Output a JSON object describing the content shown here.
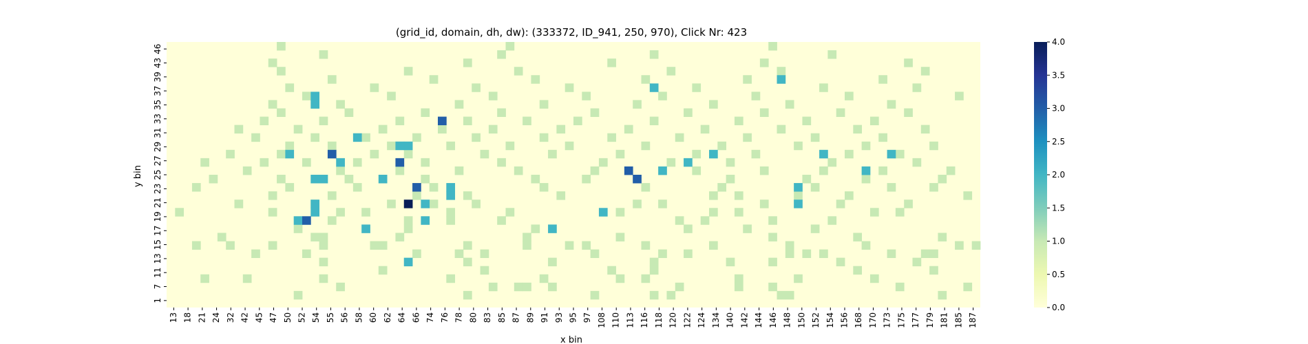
{
  "chart_data": {
    "type": "heatmap",
    "title": "(grid_id, domain, dh, dw): (333372, ID_941, 250, 970), Click Nr: 423",
    "xlabel": "x bin",
    "ylabel": "y bin",
    "colormap": "YlGnBu",
    "colorbar": {
      "vmin": 0.0,
      "vmax": 4.0,
      "ticks": [
        "0.0",
        "0.5",
        "1.0",
        "1.5",
        "2.0",
        "2.5",
        "3.0",
        "3.5",
        "4.0"
      ]
    },
    "colors": {
      "c0": "#ffffd9",
      "c1": "#c7e9b4",
      "c2": "#41b6c4",
      "c3": "#225ea8",
      "c4": "#081d58"
    },
    "x_tick_labels": [
      "13",
      "18",
      "21",
      "24",
      "32",
      "42",
      "45",
      "47",
      "50",
      "52",
      "54",
      "55",
      "56",
      "58",
      "60",
      "62",
      "64",
      "66",
      "74",
      "76",
      "78",
      "80",
      "83",
      "85",
      "87",
      "89",
      "91",
      "93",
      "95",
      "97",
      "108",
      "110",
      "113",
      "116",
      "118",
      "120",
      "122",
      "124",
      "134",
      "140",
      "142",
      "144",
      "146",
      "148",
      "150",
      "152",
      "154",
      "156",
      "168",
      "170",
      "173",
      "175",
      "177",
      "179",
      "181",
      "185",
      "187"
    ],
    "y_tick_labels": [
      "1",
      "7",
      "11",
      "13",
      "15",
      "17",
      "19",
      "21",
      "23",
      "25",
      "27",
      "29",
      "31",
      "33",
      "35",
      "37",
      "39",
      "43",
      "46"
    ],
    "n_cols": 96,
    "n_rows": 32,
    "cells": [
      [
        1,
        15,
        1
      ],
      [
        1,
        35,
        1
      ],
      [
        1,
        50,
        1
      ],
      [
        1,
        57,
        1
      ],
      [
        1,
        59,
        1
      ],
      [
        1,
        72,
        1
      ],
      [
        1,
        73,
        1
      ],
      [
        1,
        91,
        1
      ],
      [
        2,
        20,
        1
      ],
      [
        2,
        38,
        1
      ],
      [
        2,
        41,
        1
      ],
      [
        2,
        42,
        1
      ],
      [
        2,
        45,
        1
      ],
      [
        2,
        60,
        1
      ],
      [
        2,
        67,
        1
      ],
      [
        2,
        71,
        1
      ],
      [
        2,
        86,
        1
      ],
      [
        2,
        94,
        1
      ],
      [
        3,
        4,
        1
      ],
      [
        3,
        9,
        1
      ],
      [
        3,
        18,
        1
      ],
      [
        3,
        33,
        1
      ],
      [
        3,
        44,
        1
      ],
      [
        3,
        53,
        1
      ],
      [
        3,
        56,
        1
      ],
      [
        3,
        67,
        1
      ],
      [
        3,
        74,
        1
      ],
      [
        3,
        83,
        1
      ],
      [
        4,
        25,
        1
      ],
      [
        4,
        37,
        1
      ],
      [
        4,
        52,
        1
      ],
      [
        4,
        57,
        1
      ],
      [
        4,
        81,
        1
      ],
      [
        4,
        90,
        1
      ],
      [
        5,
        18,
        1
      ],
      [
        5,
        35,
        1
      ],
      [
        5,
        45,
        1
      ],
      [
        5,
        57,
        1
      ],
      [
        5,
        66,
        1
      ],
      [
        5,
        71,
        1
      ],
      [
        5,
        79,
        1
      ],
      [
        5,
        88,
        1
      ],
      [
        6,
        10,
        1
      ],
      [
        6,
        16,
        1
      ],
      [
        6,
        29,
        1
      ],
      [
        6,
        34,
        1
      ],
      [
        6,
        37,
        1
      ],
      [
        6,
        50,
        1
      ],
      [
        6,
        58,
        1
      ],
      [
        6,
        61,
        1
      ],
      [
        6,
        73,
        1
      ],
      [
        6,
        75,
        1
      ],
      [
        6,
        77,
        1
      ],
      [
        6,
        85,
        1
      ],
      [
        6,
        89,
        1
      ],
      [
        6,
        90,
        1
      ],
      [
        7,
        3,
        1
      ],
      [
        7,
        7,
        1
      ],
      [
        7,
        12,
        1
      ],
      [
        7,
        18,
        1
      ],
      [
        7,
        24,
        1
      ],
      [
        7,
        25,
        1
      ],
      [
        7,
        35,
        1
      ],
      [
        7,
        42,
        1
      ],
      [
        7,
        47,
        1
      ],
      [
        7,
        49,
        1
      ],
      [
        7,
        56,
        1
      ],
      [
        7,
        64,
        1
      ],
      [
        7,
        73,
        1
      ],
      [
        7,
        82,
        1
      ],
      [
        7,
        93,
        1
      ],
      [
        7,
        95,
        1
      ],
      [
        8,
        6,
        1
      ],
      [
        8,
        17,
        1
      ],
      [
        8,
        18,
        1
      ],
      [
        8,
        27,
        1
      ],
      [
        8,
        42,
        1
      ],
      [
        8,
        53,
        1
      ],
      [
        8,
        71,
        1
      ],
      [
        8,
        81,
        1
      ],
      [
        8,
        91,
        1
      ],
      [
        9,
        15,
        1
      ],
      [
        9,
        28,
        1
      ],
      [
        9,
        43,
        1
      ],
      [
        9,
        61,
        1
      ],
      [
        9,
        68,
        1
      ],
      [
        9,
        76,
        1
      ],
      [
        10,
        19,
        1
      ],
      [
        10,
        28,
        1
      ],
      [
        10,
        33,
        1
      ],
      [
        10,
        39,
        1
      ],
      [
        10,
        60,
        1
      ],
      [
        10,
        63,
        1
      ],
      [
        10,
        71,
        1
      ],
      [
        10,
        78,
        1
      ],
      [
        11,
        1,
        1
      ],
      [
        11,
        12,
        1
      ],
      [
        11,
        20,
        1
      ],
      [
        11,
        23,
        1
      ],
      [
        11,
        33,
        1
      ],
      [
        11,
        40,
        1
      ],
      [
        11,
        53,
        1
      ],
      [
        11,
        64,
        1
      ],
      [
        11,
        67,
        1
      ],
      [
        11,
        83,
        1
      ],
      [
        11,
        86,
        1
      ],
      [
        12,
        8,
        1
      ],
      [
        12,
        17,
        1
      ],
      [
        12,
        26,
        1
      ],
      [
        12,
        31,
        1
      ],
      [
        12,
        36,
        1
      ],
      [
        12,
        55,
        1
      ],
      [
        12,
        58,
        1
      ],
      [
        12,
        70,
        1
      ],
      [
        12,
        79,
        1
      ],
      [
        12,
        87,
        1
      ],
      [
        13,
        12,
        1
      ],
      [
        13,
        19,
        1
      ],
      [
        13,
        29,
        1
      ],
      [
        13,
        35,
        1
      ],
      [
        13,
        46,
        1
      ],
      [
        13,
        64,
        1
      ],
      [
        13,
        67,
        1
      ],
      [
        13,
        74,
        1
      ],
      [
        13,
        80,
        1
      ],
      [
        13,
        94,
        1
      ],
      [
        14,
        3,
        1
      ],
      [
        14,
        14,
        1
      ],
      [
        14,
        22,
        1
      ],
      [
        14,
        31,
        1
      ],
      [
        14,
        44,
        1
      ],
      [
        14,
        56,
        1
      ],
      [
        14,
        65,
        1
      ],
      [
        14,
        76,
        1
      ],
      [
        14,
        85,
        1
      ],
      [
        14,
        90,
        1
      ],
      [
        15,
        5,
        1
      ],
      [
        15,
        13,
        1
      ],
      [
        15,
        21,
        1
      ],
      [
        15,
        30,
        1
      ],
      [
        15,
        43,
        1
      ],
      [
        15,
        49,
        1
      ],
      [
        15,
        66,
        1
      ],
      [
        15,
        75,
        1
      ],
      [
        15,
        82,
        1
      ],
      [
        15,
        91,
        1
      ],
      [
        16,
        9,
        1
      ],
      [
        16,
        20,
        1
      ],
      [
        16,
        27,
        1
      ],
      [
        16,
        34,
        1
      ],
      [
        16,
        41,
        1
      ],
      [
        16,
        50,
        1
      ],
      [
        16,
        62,
        1
      ],
      [
        16,
        70,
        1
      ],
      [
        16,
        77,
        1
      ],
      [
        16,
        84,
        1
      ],
      [
        16,
        92,
        1
      ],
      [
        17,
        4,
        1
      ],
      [
        17,
        11,
        1
      ],
      [
        17,
        16,
        1
      ],
      [
        17,
        22,
        1
      ],
      [
        17,
        30,
        1
      ],
      [
        17,
        39,
        1
      ],
      [
        17,
        51,
        1
      ],
      [
        17,
        59,
        1
      ],
      [
        17,
        66,
        1
      ],
      [
        17,
        78,
        1
      ],
      [
        17,
        88,
        1
      ],
      [
        18,
        7,
        1
      ],
      [
        18,
        13,
        1
      ],
      [
        18,
        24,
        1
      ],
      [
        18,
        28,
        1
      ],
      [
        18,
        37,
        1
      ],
      [
        18,
        45,
        1
      ],
      [
        18,
        53,
        1
      ],
      [
        18,
        62,
        1
      ],
      [
        18,
        69,
        1
      ],
      [
        18,
        80,
        1
      ],
      [
        18,
        86,
        1
      ],
      [
        19,
        14,
        1
      ],
      [
        19,
        19,
        1
      ],
      [
        19,
        26,
        1
      ],
      [
        19,
        33,
        1
      ],
      [
        19,
        40,
        1
      ],
      [
        19,
        47,
        1
      ],
      [
        19,
        56,
        1
      ],
      [
        19,
        65,
        1
      ],
      [
        19,
        74,
        1
      ],
      [
        19,
        82,
        1
      ],
      [
        19,
        90,
        1
      ],
      [
        20,
        10,
        1
      ],
      [
        20,
        17,
        1
      ],
      [
        20,
        23,
        1
      ],
      [
        20,
        29,
        1
      ],
      [
        20,
        36,
        1
      ],
      [
        20,
        44,
        1
      ],
      [
        20,
        52,
        1
      ],
      [
        20,
        60,
        1
      ],
      [
        20,
        68,
        1
      ],
      [
        20,
        76,
        1
      ],
      [
        20,
        84,
        1
      ],
      [
        21,
        8,
        1
      ],
      [
        21,
        15,
        1
      ],
      [
        21,
        25,
        1
      ],
      [
        21,
        32,
        1
      ],
      [
        21,
        38,
        1
      ],
      [
        21,
        46,
        1
      ],
      [
        21,
        54,
        1
      ],
      [
        21,
        63,
        1
      ],
      [
        21,
        72,
        1
      ],
      [
        21,
        81,
        1
      ],
      [
        21,
        89,
        1
      ],
      [
        22,
        11,
        1
      ],
      [
        22,
        18,
        1
      ],
      [
        22,
        27,
        1
      ],
      [
        22,
        35,
        1
      ],
      [
        22,
        42,
        1
      ],
      [
        22,
        48,
        1
      ],
      [
        22,
        57,
        1
      ],
      [
        22,
        67,
        1
      ],
      [
        22,
        75,
        1
      ],
      [
        22,
        83,
        1
      ],
      [
        23,
        13,
        1
      ],
      [
        23,
        21,
        1
      ],
      [
        23,
        30,
        1
      ],
      [
        23,
        39,
        1
      ],
      [
        23,
        50,
        1
      ],
      [
        23,
        61,
        1
      ],
      [
        23,
        70,
        1
      ],
      [
        23,
        79,
        1
      ],
      [
        23,
        87,
        1
      ],
      [
        24,
        12,
        1
      ],
      [
        24,
        20,
        1
      ],
      [
        24,
        34,
        1
      ],
      [
        24,
        44,
        1
      ],
      [
        24,
        55,
        1
      ],
      [
        24,
        64,
        1
      ],
      [
        24,
        73,
        1
      ],
      [
        24,
        85,
        1
      ],
      [
        25,
        16,
        1
      ],
      [
        25,
        26,
        1
      ],
      [
        25,
        38,
        1
      ],
      [
        25,
        49,
        1
      ],
      [
        25,
        58,
        1
      ],
      [
        25,
        69,
        1
      ],
      [
        25,
        80,
        1
      ],
      [
        25,
        93,
        1
      ],
      [
        26,
        14,
        1
      ],
      [
        26,
        24,
        1
      ],
      [
        26,
        36,
        1
      ],
      [
        26,
        47,
        1
      ],
      [
        26,
        62,
        1
      ],
      [
        26,
        77,
        1
      ],
      [
        26,
        88,
        1
      ],
      [
        27,
        19,
        1
      ],
      [
        27,
        31,
        1
      ],
      [
        27,
        43,
        1
      ],
      [
        27,
        56,
        1
      ],
      [
        27,
        68,
        1
      ],
      [
        27,
        84,
        1
      ],
      [
        28,
        13,
        1
      ],
      [
        28,
        28,
        1
      ],
      [
        28,
        41,
        1
      ],
      [
        28,
        59,
        1
      ],
      [
        28,
        72,
        1
      ],
      [
        28,
        89,
        1
      ],
      [
        29,
        12,
        1
      ],
      [
        29,
        35,
        1
      ],
      [
        29,
        52,
        1
      ],
      [
        29,
        70,
        1
      ],
      [
        29,
        87,
        1
      ],
      [
        30,
        18,
        1
      ],
      [
        30,
        39,
        1
      ],
      [
        30,
        57,
        1
      ],
      [
        30,
        78,
        1
      ],
      [
        31,
        13,
        1
      ],
      [
        31,
        40,
        1
      ],
      [
        31,
        71,
        1
      ],
      [
        25,
        17,
        2
      ],
      [
        24,
        17,
        2
      ],
      [
        19,
        28,
        2
      ],
      [
        18,
        14,
        2
      ],
      [
        20,
        22,
        2
      ],
      [
        17,
        20,
        2
      ],
      [
        15,
        25,
        2
      ],
      [
        15,
        17,
        2
      ],
      [
        12,
        17,
        2
      ],
      [
        13,
        33,
        2
      ],
      [
        12,
        30,
        2
      ],
      [
        11,
        17,
        2
      ],
      [
        10,
        15,
        2
      ],
      [
        9,
        23,
        2
      ],
      [
        14,
        33,
        2
      ],
      [
        15,
        18,
        2
      ],
      [
        5,
        28,
        2
      ],
      [
        19,
        27,
        2
      ],
      [
        18,
        64,
        2
      ],
      [
        16,
        58,
        2
      ],
      [
        17,
        61,
        2
      ],
      [
        11,
        51,
        2
      ],
      [
        10,
        30,
        2
      ],
      [
        14,
        74,
        2
      ],
      [
        12,
        74,
        2
      ],
      [
        18,
        85,
        2
      ],
      [
        16,
        82,
        2
      ],
      [
        18,
        77,
        2
      ],
      [
        9,
        45,
        2
      ],
      [
        26,
        57,
        2
      ],
      [
        27,
        72,
        2
      ],
      [
        10,
        16,
        3
      ],
      [
        14,
        29,
        3
      ],
      [
        17,
        27,
        3
      ],
      [
        15,
        55,
        3
      ],
      [
        22,
        32,
        3
      ],
      [
        16,
        54,
        3
      ],
      [
        18,
        19,
        3
      ],
      [
        12,
        28,
        4
      ]
    ]
  }
}
